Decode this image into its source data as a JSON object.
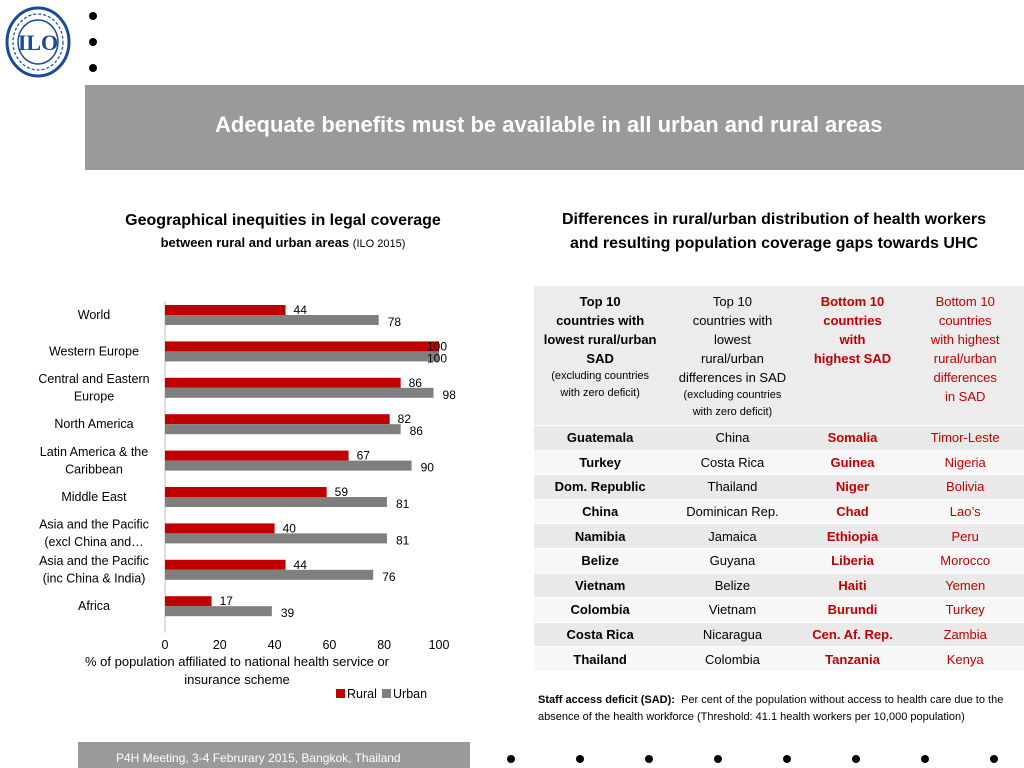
{
  "header": {
    "logo_text": "ILO",
    "title": "Adequate benefits must be available in all urban and rural areas"
  },
  "left_panel": {
    "heading_line1": "Geographical inequities in legal coverage",
    "heading_line2": "between rural and urban areas",
    "heading_source": "(ILO 2015)"
  },
  "chart_data": {
    "type": "bar",
    "orientation": "horizontal",
    "categories": [
      "World",
      "Western Europe",
      "Central and Eastern Europe",
      "North America",
      "Latin America & the Caribbean",
      "Middle East",
      "Asia and the Pacific (excl China and…",
      "Asia and the Pacific (inc China & India)",
      "Africa"
    ],
    "category_label_lines": [
      [
        "World"
      ],
      [
        "Western Europe"
      ],
      [
        "Central and Eastern",
        "Europe"
      ],
      [
        "North America"
      ],
      [
        "Latin America & the",
        "Caribbean"
      ],
      [
        "Middle East"
      ],
      [
        "Asia and the Pacific",
        "(excl China and…"
      ],
      [
        "Asia and the Pacific",
        "(inc China & India)"
      ],
      [
        "Africa"
      ]
    ],
    "series": [
      {
        "name": "Rural",
        "color": "#c00000",
        "values": [
          44,
          100,
          86,
          82,
          67,
          59,
          40,
          44,
          17
        ]
      },
      {
        "name": "Urban",
        "color": "#7f7f7f",
        "values": [
          78,
          100,
          98,
          86,
          90,
          81,
          81,
          76,
          39
        ]
      }
    ],
    "data_labels": {
      "Rural": [
        "44",
        "100",
        "86",
        "82",
        "67",
        "59",
        "40",
        "44",
        "17"
      ],
      "Urban": [
        "78",
        "100",
        "98",
        "86",
        "90",
        "81",
        "81",
        "76",
        "39"
      ]
    },
    "xlim": [
      0,
      100
    ],
    "xticks": [
      "0",
      "20",
      "40",
      "60",
      "80",
      "100"
    ],
    "xlabel_line1": "% of population affiliated to national health service or",
    "xlabel_line2": "insurance scheme",
    "legend": {
      "position": "bottom-right",
      "items": [
        "Rural",
        "Urban"
      ]
    },
    "grid": false
  },
  "right_panel": {
    "heading_line1": "Differences in rural/urban distribution of health workers",
    "heading_line2": "and resulting population coverage gaps towards UHC",
    "columns": [
      {
        "lines": [
          "Top 10",
          "countries with",
          "lowest rural/urban",
          "SAD"
        ],
        "note": [
          "(excluding countries",
          "with zero deficit)"
        ],
        "style": "bold"
      },
      {
        "lines": [
          "Top 10",
          "countries with",
          "lowest",
          "rural/urban",
          "differences in SAD"
        ],
        "note": [
          "(excluding countries",
          "with zero deficit)"
        ],
        "style": "normal"
      },
      {
        "lines": [
          "Bottom 10",
          "countries",
          "with",
          "highest SAD"
        ],
        "note": [],
        "style": "bold-red"
      },
      {
        "lines": [
          "Bottom 10",
          "countries",
          "with highest",
          "rural/urban",
          "differences",
          "in SAD"
        ],
        "note": [],
        "style": "red"
      }
    ],
    "rows": [
      [
        "Guatemala",
        "China",
        "Somalia",
        "Timor-Leste"
      ],
      [
        "Turkey",
        "Costa Rica",
        "Guinea",
        "Nigeria"
      ],
      [
        "Dom. Republic",
        "Thailand",
        "Niger",
        "Bolivia"
      ],
      [
        "China",
        "Dominican Rep.",
        "Chad",
        "Lao’s"
      ],
      [
        "Namibia",
        "Jamaica",
        "Ethiopia",
        "Peru"
      ],
      [
        "Belize",
        "Guyana",
        "Liberia",
        "Morocco"
      ],
      [
        "Vietnam",
        "Belize",
        "Haiti",
        "Yemen"
      ],
      [
        "Colombia",
        "Vietnam",
        "Burundi",
        "Turkey"
      ],
      [
        "Costa Rica",
        "Nicaragua",
        "Cen. Af. Rep.",
        "Zambia"
      ],
      [
        "Thailand",
        "Colombia",
        "Tanzania",
        "Kenya"
      ]
    ],
    "footnote_term": "Staff access deficit (SAD):",
    "footnote_text": "Per cent of the population without access to health care due to the absence of the health workforce  (Threshold: 41.1 health workers per 10,000 population)"
  },
  "footer": {
    "text": "P4H Meeting, 3-4 Februrary 2015, Bangkok, Thailand"
  },
  "colors": {
    "title_bar": "#9a9a9a",
    "rural": "#c00000",
    "urban": "#7f7f7f",
    "logo_blue": "#1a4a9a"
  }
}
